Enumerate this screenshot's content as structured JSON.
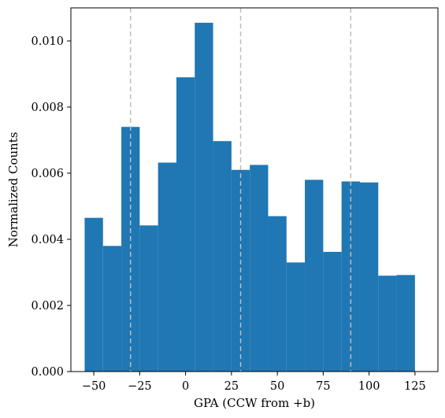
{
  "chart_data": {
    "type": "bar",
    "title": "",
    "xlabel": "GPA (CCW from +b)",
    "ylabel": "Normalized Counts",
    "xlim": [
      -62.5,
      137.5
    ],
    "ylim": [
      0,
      0.011
    ],
    "x_ticks": [
      -50,
      -25,
      0,
      25,
      50,
      75,
      100,
      125
    ],
    "x_tick_labels": [
      "−50",
      "−25",
      "0",
      "25",
      "50",
      "75",
      "100",
      "125"
    ],
    "y_ticks": [
      0,
      0.002,
      0.004,
      0.006,
      0.008,
      0.01
    ],
    "y_tick_labels": [
      "0.000",
      "0.002",
      "0.004",
      "0.006",
      "0.008",
      "0.010"
    ],
    "bin_width": 10,
    "bin_starts": [
      -55,
      -45,
      -35,
      -25,
      -15,
      -5,
      5,
      15,
      25,
      35,
      45,
      55,
      65,
      75,
      85,
      95,
      105,
      115
    ],
    "values": [
      0.00465,
      0.0038,
      0.0074,
      0.00442,
      0.00632,
      0.0089,
      0.01055,
      0.00697,
      0.0061,
      0.00625,
      0.0047,
      0.0033,
      0.0058,
      0.00362,
      0.00575,
      0.00572,
      0.0029,
      0.00292
    ],
    "bar_color": "#1f77b4",
    "reference_lines": [
      -30,
      30,
      90
    ],
    "reference_line_color": "#bdbdbd",
    "reference_line_style": "dashed",
    "grid": false,
    "legend": "none"
  }
}
